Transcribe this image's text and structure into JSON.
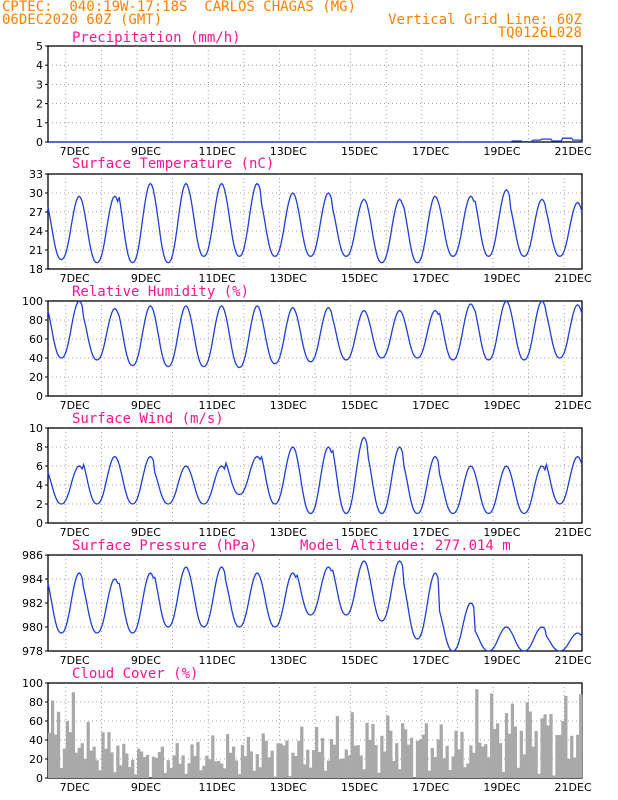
{
  "header": {
    "line1": "CPTEC:  040:19W-17:18S  CARLOS CHAGAS (MG)",
    "line2": "06DEC2020 60Z (GMT)",
    "grid_note": "Vertical Grid Line: 60Z",
    "code": "TQ0126L028"
  },
  "colors": {
    "header": "#ff8000",
    "title": "#ff1493",
    "series": "#1f3fd8",
    "cloud": "#a9a9a9",
    "grid": "#888888",
    "arrow": "#000000"
  },
  "x_axis": {
    "start_hour": 0,
    "end_hour": 360,
    "ticks": [
      "7DEC",
      "9DEC",
      "11DEC",
      "13DEC",
      "15DEC",
      "17DEC",
      "19DEC",
      "21DEC"
    ]
  },
  "chart_data": [
    {
      "type": "line",
      "title": "Precipitation (mm/h)",
      "ylim": [
        0,
        5
      ],
      "yticks": [
        0,
        1,
        2,
        3,
        4,
        5
      ],
      "samples": [
        0,
        0,
        0,
        0,
        0,
        0,
        0,
        0,
        0,
        0,
        0,
        0,
        0,
        0,
        0,
        0,
        0,
        0,
        0,
        0,
        0,
        0,
        0,
        0,
        0,
        0,
        0,
        0,
        0,
        0,
        0,
        0,
        0,
        0,
        0,
        0,
        0,
        0,
        0,
        0,
        0,
        0,
        0,
        0,
        0,
        0,
        0.05,
        0.02,
        0.1,
        0.15,
        0.05,
        0.2,
        0.1,
        0
      ]
    },
    {
      "type": "line",
      "title": "Surface Temperature (nC)",
      "ylim": [
        18,
        33
      ],
      "yticks": [
        18,
        21,
        24,
        27,
        30,
        33
      ],
      "daily_max": [
        29.5,
        29.5,
        31.5,
        31.5,
        31.5,
        31.5,
        30,
        30,
        29,
        29,
        29.5,
        29.5,
        30.5,
        29,
        28.5
      ],
      "daily_min": [
        19.5,
        19,
        19,
        19,
        20,
        20,
        20,
        20,
        20,
        19,
        19,
        20,
        20,
        20,
        20
      ]
    },
    {
      "type": "line",
      "title": "Relative Humidity (%)",
      "ylim": [
        0,
        100
      ],
      "yticks": [
        0,
        20,
        40,
        60,
        80,
        100
      ],
      "daily_max": [
        100,
        92,
        95,
        95,
        95,
        95,
        93,
        93,
        90,
        90,
        90,
        97,
        100,
        100,
        96
      ],
      "daily_min": [
        40,
        38,
        32,
        31,
        31,
        30,
        34,
        36,
        38,
        40,
        40,
        38,
        38,
        38,
        40
      ]
    },
    {
      "type": "line",
      "title": "Surface Wind (m/s)",
      "ylim": [
        0,
        10
      ],
      "yticks": [
        0,
        2,
        4,
        6,
        8,
        10
      ],
      "daily_max": [
        6,
        7,
        7,
        6,
        6,
        7,
        8,
        8,
        9,
        8,
        7,
        6,
        6,
        6,
        7
      ],
      "daily_min": [
        2,
        2,
        2,
        2,
        2,
        3,
        2,
        1,
        1,
        1,
        1,
        1,
        1,
        1,
        2
      ]
    },
    {
      "type": "line",
      "title": "Surface Pressure (hPa)",
      "ylim": [
        978,
        986
      ],
      "yticks": [
        978,
        980,
        982,
        984,
        986
      ],
      "annotation": "Model Altitude: 277.014 m",
      "daily_max": [
        984.5,
        984,
        984.5,
        985,
        985,
        984.5,
        984.5,
        985,
        985.5,
        985.5,
        984.5,
        982,
        980,
        980,
        979.5
      ],
      "daily_min": [
        979.5,
        979.5,
        979.5,
        980,
        980,
        980,
        980,
        981,
        981,
        980.5,
        979,
        978,
        978,
        978,
        978
      ]
    },
    {
      "type": "bar",
      "title": "Cloud Cover (%)",
      "ylim": [
        0,
        100
      ],
      "yticks": [
        0,
        20,
        40,
        60,
        80,
        100
      ],
      "daily_values": [
        95,
        60,
        40,
        40,
        45,
        50,
        55,
        60,
        70,
        75,
        70,
        60,
        95,
        95,
        95
      ]
    }
  ]
}
